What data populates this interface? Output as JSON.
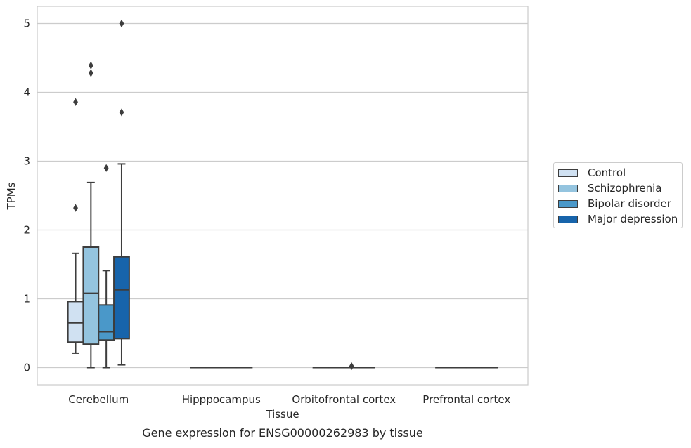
{
  "chart_data": {
    "type": "box",
    "title": "Gene expression for ENSG00000262983 by tissue",
    "xlabel": "Tissue",
    "ylabel": "TPMs",
    "ylim": [
      -0.25,
      5.25
    ],
    "y_ticks": [
      0,
      1,
      2,
      3,
      4,
      5
    ],
    "grid": "horizontal",
    "legend_position": "right",
    "categories": [
      "Cerebellum",
      "Hipppocampus",
      "Orbitofrontal cortex",
      "Prefrontal cortex"
    ],
    "series": [
      {
        "name": "Control",
        "color": "#d0e1f2",
        "boxes": [
          {
            "whislo": 0.21,
            "q1": 0.37,
            "med": 0.65,
            "q3": 0.96,
            "whishi": 1.66,
            "fliers": [
              2.32,
              3.86
            ]
          },
          {
            "whislo": 0,
            "q1": 0,
            "med": 0,
            "q3": 0,
            "whishi": 0,
            "fliers": []
          },
          {
            "whislo": 0,
            "q1": 0,
            "med": 0,
            "q3": 0,
            "whishi": 0,
            "fliers": []
          },
          {
            "whislo": 0,
            "q1": 0,
            "med": 0,
            "q3": 0,
            "whishi": 0,
            "fliers": []
          }
        ]
      },
      {
        "name": "Schizophrenia",
        "color": "#94c4df",
        "boxes": [
          {
            "whislo": 0.0,
            "q1": 0.34,
            "med": 1.08,
            "q3": 1.75,
            "whishi": 2.69,
            "fliers": [
              4.28,
              4.39
            ]
          },
          {
            "whislo": 0,
            "q1": 0,
            "med": 0,
            "q3": 0,
            "whishi": 0,
            "fliers": []
          },
          {
            "whislo": 0,
            "q1": 0,
            "med": 0,
            "q3": 0,
            "whishi": 0,
            "fliers": []
          },
          {
            "whislo": 0,
            "q1": 0,
            "med": 0,
            "q3": 0,
            "whishi": 0,
            "fliers": []
          }
        ]
      },
      {
        "name": "Bipolar disorder",
        "color": "#4a98c9",
        "boxes": [
          {
            "whislo": 0.0,
            "q1": 0.4,
            "med": 0.52,
            "q3": 0.91,
            "whishi": 1.41,
            "fliers": [
              2.9
            ]
          },
          {
            "whislo": 0,
            "q1": 0,
            "med": 0,
            "q3": 0,
            "whishi": 0,
            "fliers": []
          },
          {
            "whislo": 0,
            "q1": 0,
            "med": 0,
            "q3": 0,
            "whishi": 0,
            "fliers": [
              0.02
            ]
          },
          {
            "whislo": 0,
            "q1": 0,
            "med": 0,
            "q3": 0,
            "whishi": 0,
            "fliers": []
          }
        ]
      },
      {
        "name": "Major depression",
        "color": "#1764ab",
        "boxes": [
          {
            "whislo": 0.04,
            "q1": 0.42,
            "med": 1.13,
            "q3": 1.61,
            "whishi": 2.96,
            "fliers": [
              3.71,
              5.0
            ]
          },
          {
            "whislo": 0,
            "q1": 0,
            "med": 0,
            "q3": 0,
            "whishi": 0,
            "fliers": []
          },
          {
            "whislo": 0,
            "q1": 0,
            "med": 0,
            "q3": 0,
            "whishi": 0,
            "fliers": []
          },
          {
            "whislo": 0,
            "q1": 0,
            "med": 0,
            "q3": 0,
            "whishi": 0,
            "fliers": []
          }
        ]
      }
    ]
  }
}
